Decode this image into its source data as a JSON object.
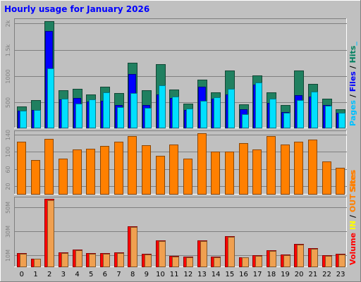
{
  "chart_data": {
    "type": "bar",
    "title": "Hourly usage for January 2026",
    "categories": [
      "0",
      "1",
      "2",
      "3",
      "4",
      "5",
      "6",
      "7",
      "8",
      "9",
      "10",
      "11",
      "12",
      "13",
      "14",
      "15",
      "16",
      "17",
      "18",
      "19",
      "20",
      "21",
      "22",
      "23"
    ],
    "panels": [
      {
        "ylim": [
          0,
          2100
        ],
        "yticks": [
          500,
          1000,
          1500,
          2000
        ],
        "yticklabels": [
          "500",
          "1000",
          "1.5k",
          "2k"
        ],
        "legend": [
          {
            "text": "Pages",
            "color": "#00c0ff"
          },
          {
            "text": " / ",
            "color": "#000000"
          },
          {
            "text": "Files",
            "color": "#0000ff"
          },
          {
            "text": " / ",
            "color": "#000000"
          },
          {
            "text": "Hits",
            "color": "#008060"
          },
          {
            "text": "_",
            "color": "#00c0ff"
          }
        ],
        "series": [
          {
            "name": "Hits",
            "color": "#208060",
            "values": [
              420,
              540,
              2050,
              730,
              750,
              640,
              800,
              670,
              1250,
              730,
              1220,
              740,
              470,
              930,
              680,
              1100,
              460,
              1010,
              680,
              440,
              1100,
              850,
              560,
              370
            ]
          },
          {
            "name": "Files",
            "color": "#0000ff",
            "values": [
              330,
              350,
              1860,
              550,
              580,
              510,
              520,
              450,
              1040,
              440,
              640,
              580,
              350,
              790,
              560,
              650,
              360,
              830,
              480,
              310,
              630,
              600,
              440,
              290
            ]
          },
          {
            "name": "Pages",
            "color": "#00e0ff",
            "values": [
              330,
              350,
              1150,
              560,
              470,
              550,
              680,
              400,
              670,
              390,
              820,
              600,
              380,
              530,
              590,
              760,
              270,
              870,
              560,
              300,
              540,
              700,
              430,
              300
            ]
          }
        ]
      },
      {
        "ylim": [
          0,
          150
        ],
        "yticks": [
          20,
          60,
          100,
          140
        ],
        "yticklabels": [
          "20",
          "60",
          "100",
          "140"
        ],
        "legend": [
          {
            "text": "Sites",
            "color": "#ff8000"
          }
        ],
        "series": [
          {
            "name": "Sites",
            "color": "#ff8000",
            "values": [
              124,
              81,
              131,
              84,
              105,
              107,
              113,
              123,
              137,
              116,
              91,
              117,
              84,
              144,
              100,
              100,
              120,
              105,
              137,
              117,
              123,
              129,
              78,
              63
            ]
          }
        ]
      },
      {
        "ylim": [
          0,
          59
        ],
        "yticks": [
          10,
          30,
          50
        ],
        "yticklabels": [
          "10M",
          "30M",
          "50M"
        ],
        "legend": [
          {
            "text": "Volume",
            "color": "#ff0000"
          },
          {
            "text": "  ",
            "color": "#000000"
          },
          {
            "text": "IN",
            "color": "#ffff00"
          },
          {
            "text": " / ",
            "color": "#000000"
          },
          {
            "text": "OUT",
            "color": "#ff8000"
          },
          {
            "text": " ",
            "color": "#000000"
          },
          {
            "text": "Sites",
            "color": "#ff8000"
          }
        ],
        "series": [
          {
            "name": "Volume",
            "color": "#ff0000",
            "values": [
              12.0,
              7.0,
              57.0,
              12.5,
              14.5,
              12.0,
              12.0,
              12.5,
              34.0,
              11.0,
              22.5,
              9.5,
              9.0,
              22.5,
              9.0,
              26.0,
              8.0,
              10.0,
              14.0,
              10.5,
              19.5,
              16.0,
              10.0,
              11.0
            ]
          },
          {
            "name": "OUT",
            "color": "#f0a050",
            "values": [
              11.5,
              7.0,
              56.0,
              12.0,
              14.0,
              11.5,
              11.5,
              12.0,
              33.5,
              10.5,
              22.0,
              9.0,
              8.5,
              22.0,
              8.5,
              25.5,
              8.0,
              9.5,
              13.5,
              10.0,
              19.0,
              15.5,
              9.5,
              10.5
            ]
          }
        ]
      }
    ]
  }
}
